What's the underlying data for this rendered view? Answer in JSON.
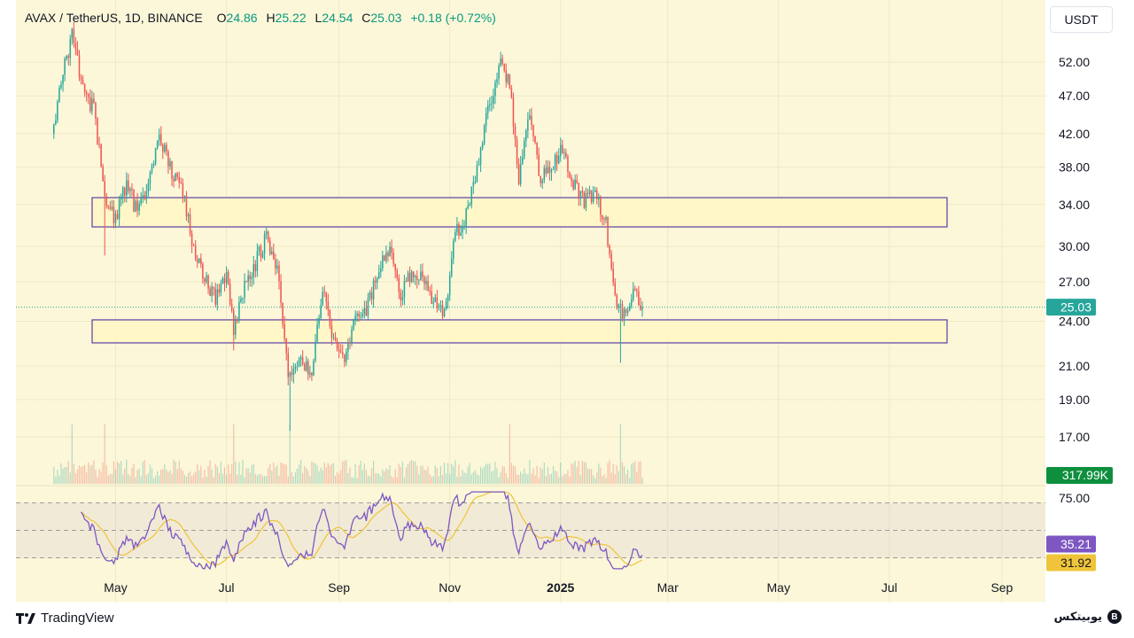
{
  "header": {
    "symbol": "AVAX / TetherUS, 1D, BINANCE",
    "open_label": "O",
    "open": "24.86",
    "high_label": "H",
    "high": "25.22",
    "low_label": "L",
    "low": "24.54",
    "close_label": "C",
    "close": "25.03",
    "change": "+0.18 (+0.72%)"
  },
  "currency_button": "USDT",
  "footer": {
    "logo_text": "TradingView",
    "brand_text": "یوبیتکس"
  },
  "colors": {
    "up": "#26a69a",
    "down": "#ef5350",
    "zone_fill": "#fff7c4",
    "zone_stroke": "#5b3fa5",
    "rsi_line": "#7e57c2",
    "rsi_ma": "#f0c43a",
    "background": "#fdf8d5",
    "last_price_badge": "#26a69a",
    "volume_badge": "#0e8f3e"
  },
  "chart_data": {
    "type": "candlestick",
    "title": "AVAX / TetherUS, 1D, BINANCE",
    "price_scale": {
      "type": "log",
      "ylim": [
        15.5,
        60
      ],
      "ticks": [
        "52.00",
        "47.00",
        "42.00",
        "38.00",
        "34.00",
        "30.00",
        "27.00",
        "24.00",
        "21.00",
        "19.00",
        "17.00"
      ],
      "last_price": "25.03",
      "volume_last": "317.99K"
    },
    "x_axis": {
      "ticks": [
        "May",
        "Jul",
        "Sep",
        "Nov",
        "2025",
        "Mar",
        "May",
        "Jul",
        "Sep"
      ]
    },
    "zones": [
      {
        "name": "resistance-zone",
        "low": 31.8,
        "high": 34.7
      },
      {
        "name": "support-zone",
        "low": 22.5,
        "high": 24.1
      }
    ],
    "anchors": [
      [
        "2024-03-28",
        42.0
      ],
      [
        "2024-04-02",
        49.0
      ],
      [
        "2024-04-08",
        56.0
      ],
      [
        "2024-04-14",
        48.0
      ],
      [
        "2024-04-20",
        45.0
      ],
      [
        "2024-04-26",
        35.0
      ],
      [
        "2024-05-02",
        32.5
      ],
      [
        "2024-05-08",
        36.5
      ],
      [
        "2024-05-14",
        33.0
      ],
      [
        "2024-05-20",
        36.0
      ],
      [
        "2024-05-26",
        41.5
      ],
      [
        "2024-06-02",
        37.5
      ],
      [
        "2024-06-08",
        35.0
      ],
      [
        "2024-06-14",
        30.0
      ],
      [
        "2024-06-20",
        27.5
      ],
      [
        "2024-06-26",
        25.5
      ],
      [
        "2024-07-02",
        28.0
      ],
      [
        "2024-07-06",
        23.5
      ],
      [
        "2024-07-12",
        26.5
      ],
      [
        "2024-07-18",
        28.5
      ],
      [
        "2024-07-24",
        31.0
      ],
      [
        "2024-07-30",
        28.0
      ],
      [
        "2024-08-05",
        20.5
      ],
      [
        "2024-08-12",
        21.5
      ],
      [
        "2024-08-18",
        20.5
      ],
      [
        "2024-08-24",
        26.5
      ],
      [
        "2024-08-30",
        22.5
      ],
      [
        "2024-09-05",
        21.5
      ],
      [
        "2024-09-11",
        24.0
      ],
      [
        "2024-09-17",
        25.0
      ],
      [
        "2024-09-24",
        28.0
      ],
      [
        "2024-09-30",
        29.5
      ],
      [
        "2024-10-06",
        26.0
      ],
      [
        "2024-10-12",
        28.0
      ],
      [
        "2024-10-18",
        27.5
      ],
      [
        "2024-10-24",
        25.5
      ],
      [
        "2024-10-30",
        24.5
      ],
      [
        "2024-11-05",
        31.0
      ],
      [
        "2024-11-11",
        33.0
      ],
      [
        "2024-11-17",
        38.0
      ],
      [
        "2024-11-23",
        45.0
      ],
      [
        "2024-11-30",
        52.0
      ],
      [
        "2024-12-05",
        49.0
      ],
      [
        "2024-12-10",
        37.0
      ],
      [
        "2024-12-16",
        44.5
      ],
      [
        "2024-12-22",
        36.5
      ],
      [
        "2024-12-28",
        38.0
      ],
      [
        "2025-01-03",
        40.0
      ],
      [
        "2025-01-09",
        36.0
      ],
      [
        "2025-01-15",
        34.5
      ],
      [
        "2025-01-21",
        35.0
      ],
      [
        "2025-01-27",
        32.0
      ],
      [
        "2025-02-01",
        25.5
      ],
      [
        "2025-02-06",
        24.5
      ],
      [
        "2025-02-11",
        26.5
      ],
      [
        "2025-02-16",
        25.03
      ]
    ],
    "rsi": {
      "levels": {
        "upper": 70,
        "middle": 50,
        "lower": 30
      },
      "axis_tick": "75.00",
      "value": "35.21",
      "ma_value": "31.92"
    }
  }
}
